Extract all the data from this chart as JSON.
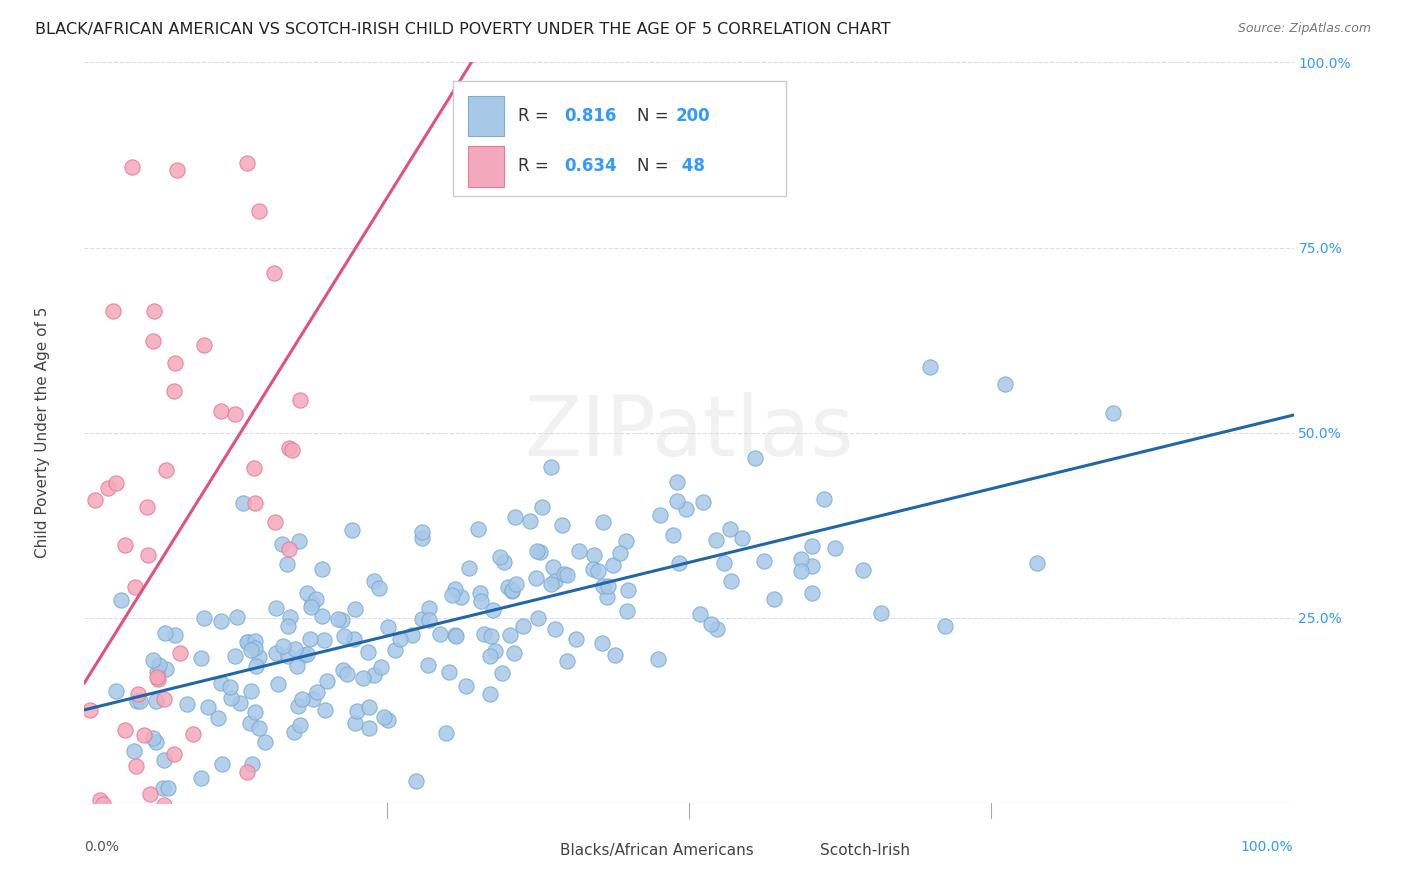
{
  "title": "BLACK/AFRICAN AMERICAN VS SCOTCH-IRISH CHILD POVERTY UNDER THE AGE OF 5 CORRELATION CHART",
  "source": "Source: ZipAtlas.com",
  "ylabel": "Child Poverty Under the Age of 5",
  "watermark": "ZIPatlas",
  "blue_R": 0.816,
  "blue_N": 200,
  "pink_R": 0.634,
  "pink_N": 48,
  "blue_color": "#a8c8e8",
  "pink_color": "#f4a8bb",
  "blue_edge_color": "#7aadd4",
  "pink_edge_color": "#e87898",
  "blue_line_color": "#2266aa",
  "pink_line_color": "#e05080",
  "legend_R_color": "#3399ff",
  "legend_N_color": "#3399ff",
  "background_color": "#ffffff",
  "grid_color": "#dddddd",
  "seed": 42
}
